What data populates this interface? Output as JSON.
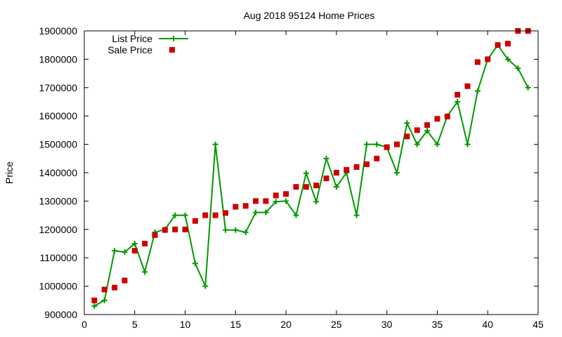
{
  "chart_data": {
    "type": "line",
    "title": "Aug 2018 95124 Home Prices",
    "xlabel": "",
    "ylabel": "Price",
    "xlim": [
      0,
      45
    ],
    "ylim": [
      900000,
      1900000
    ],
    "x_ticks": [
      0,
      5,
      10,
      15,
      20,
      25,
      30,
      35,
      40,
      45
    ],
    "y_ticks": [
      900000,
      1000000,
      1100000,
      1200000,
      1300000,
      1400000,
      1500000,
      1600000,
      1700000,
      1800000,
      1900000
    ],
    "grid": false,
    "legend_position": "top-left",
    "series": [
      {
        "name": "List Price",
        "style": "line-with-plus-markers",
        "color": "#009900",
        "x": [
          1,
          2,
          3,
          4,
          5,
          6,
          7,
          8,
          9,
          10,
          11,
          12,
          13,
          14,
          15,
          16,
          17,
          18,
          19,
          20,
          21,
          22,
          23,
          24,
          25,
          26,
          27,
          28,
          29,
          30,
          31,
          32,
          33,
          34,
          35,
          36,
          37,
          38,
          39,
          40,
          41,
          42,
          43,
          44
        ],
        "values": [
          930000,
          950000,
          1125000,
          1120000,
          1150000,
          1050000,
          1190000,
          1200000,
          1250000,
          1250000,
          1080000,
          1000000,
          1500000,
          1198000,
          1198000,
          1190000,
          1260000,
          1260000,
          1298000,
          1300000,
          1250000,
          1398000,
          1298000,
          1450000,
          1350000,
          1400000,
          1250000,
          1500000,
          1500000,
          1490000,
          1400000,
          1575000,
          1500000,
          1548000,
          1500000,
          1600000,
          1650000,
          1500000,
          1688000,
          1800000,
          1850000,
          1800000,
          1768000,
          1700000
        ]
      },
      {
        "name": "Sale Price",
        "style": "square-markers",
        "color": "#cc0000",
        "x": [
          1,
          2,
          3,
          4,
          5,
          6,
          7,
          8,
          9,
          10,
          11,
          12,
          13,
          14,
          15,
          16,
          17,
          18,
          19,
          20,
          21,
          22,
          23,
          24,
          25,
          26,
          27,
          28,
          29,
          30,
          31,
          32,
          33,
          34,
          35,
          36,
          37,
          38,
          39,
          40,
          41,
          42,
          43,
          44
        ],
        "values": [
          950000,
          988000,
          995000,
          1020000,
          1125000,
          1150000,
          1180000,
          1198000,
          1200000,
          1200000,
          1230000,
          1250000,
          1250000,
          1258000,
          1280000,
          1283000,
          1300000,
          1300000,
          1320000,
          1325000,
          1350000,
          1350000,
          1355000,
          1380000,
          1400000,
          1410000,
          1420000,
          1430000,
          1450000,
          1490000,
          1500000,
          1528000,
          1550000,
          1568000,
          1590000,
          1598000,
          1675000,
          1705000,
          1790000,
          1800000,
          1850000,
          1855000,
          1900000,
          1900000
        ]
      }
    ]
  }
}
